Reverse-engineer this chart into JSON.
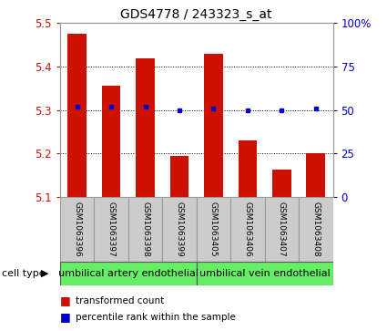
{
  "title": "GDS4778 / 243323_s_at",
  "samples": [
    "GSM1063396",
    "GSM1063397",
    "GSM1063398",
    "GSM1063399",
    "GSM1063405",
    "GSM1063406",
    "GSM1063407",
    "GSM1063408"
  ],
  "bar_values": [
    5.475,
    5.355,
    5.42,
    5.195,
    5.43,
    5.23,
    5.163,
    5.2
  ],
  "percentile_values": [
    52,
    52,
    52,
    50,
    51,
    50,
    50,
    51
  ],
  "ylim_left": [
    5.1,
    5.5
  ],
  "ylim_right": [
    0,
    100
  ],
  "yticks_left": [
    5.1,
    5.2,
    5.3,
    5.4,
    5.5
  ],
  "yticks_right": [
    0,
    25,
    50,
    75,
    100
  ],
  "bar_color": "#cc1100",
  "dot_color": "#0000cc",
  "cell_type_groups": [
    {
      "label": "umbilical artery endothelial",
      "indices": [
        0,
        3
      ]
    },
    {
      "label": "umbilical vein endothelial",
      "indices": [
        4,
        7
      ]
    }
  ],
  "cell_type_bg": "#66ee66",
  "sample_bg": "#cccccc",
  "legend_bar_label": "transformed count",
  "legend_dot_label": "percentile rank within the sample",
  "cell_type_label": "cell type"
}
